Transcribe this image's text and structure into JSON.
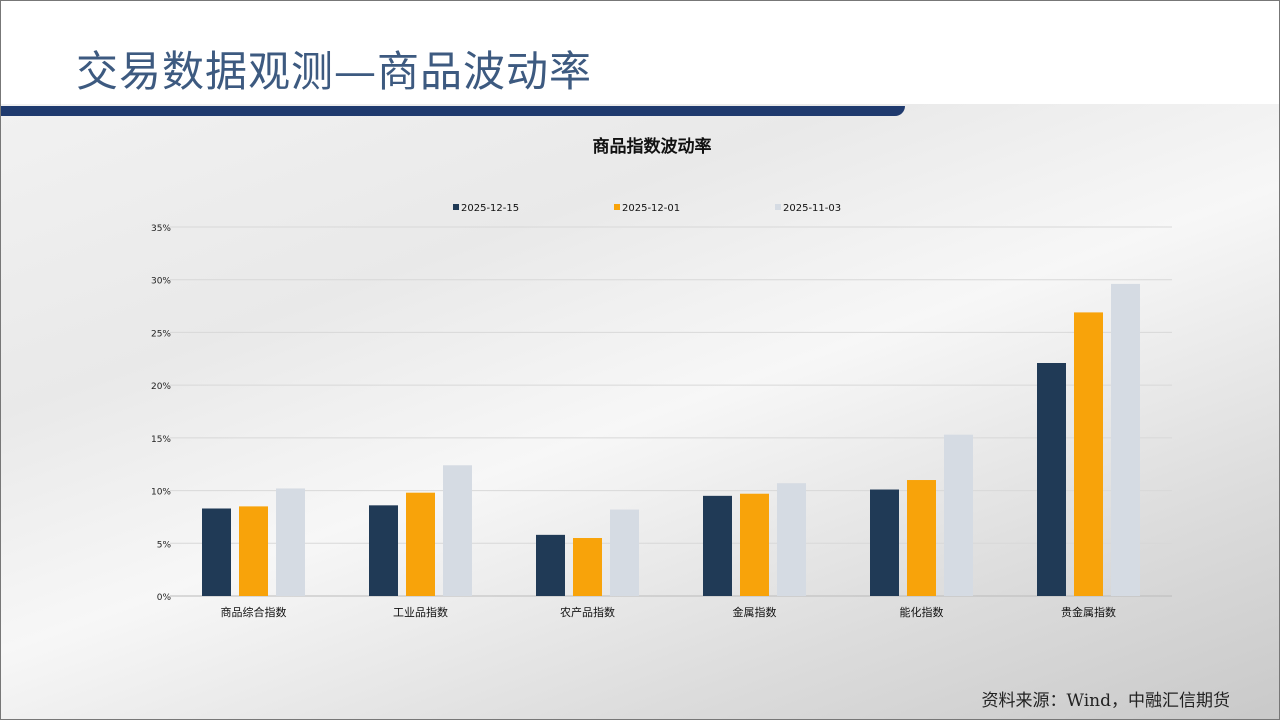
{
  "slide": {
    "title": "交易数据观测—商品波动率",
    "source": "资料来源：Wind，中融汇信期货"
  },
  "chart_data": {
    "type": "bar",
    "title": "商品指数波动率",
    "categories": [
      "商品综合指数",
      "工业品指数",
      "农产品指数",
      "金属指数",
      "能化指数",
      "贵金属指数"
    ],
    "series": [
      {
        "name": "2025-12-15",
        "color": "#203a56",
        "values": [
          8.3,
          8.6,
          5.8,
          9.5,
          10.1,
          22.1
        ]
      },
      {
        "name": "2025-12-01",
        "color": "#f8a30a",
        "values": [
          8.5,
          9.8,
          5.5,
          9.7,
          11.0,
          26.9
        ]
      },
      {
        "name": "2025-11-03",
        "color": "#d5dbe3",
        "values": [
          10.2,
          12.4,
          8.2,
          10.7,
          15.3,
          29.6
        ]
      }
    ],
    "ylim": [
      0,
      35
    ],
    "yticks": [
      "0%",
      "5%",
      "10%",
      "15%",
      "20%",
      "25%",
      "30%",
      "35%"
    ],
    "grid": true,
    "legend": "top"
  }
}
